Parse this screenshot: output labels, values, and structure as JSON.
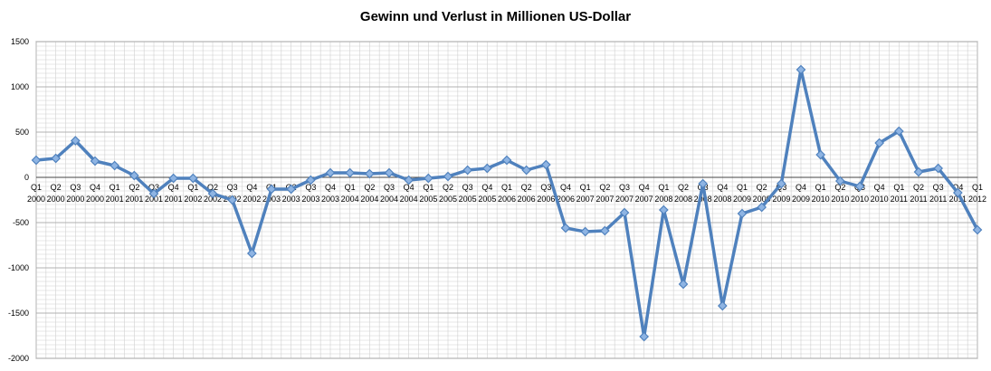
{
  "chart_data": {
    "type": "line",
    "title": "Gewinn und Verlust in Millionen US-Dollar",
    "xlabel": "",
    "ylabel": "",
    "ylim": [
      -2000,
      1500
    ],
    "yticks": [
      1500,
      1000,
      500,
      0,
      -500,
      -1000,
      -1500,
      -2000
    ],
    "grid": true,
    "legend": "none",
    "line_color": "#4F81BD",
    "categories": [
      [
        "Q1",
        "2000"
      ],
      [
        "Q2",
        "2000"
      ],
      [
        "Q3",
        "2000"
      ],
      [
        "Q4",
        "2000"
      ],
      [
        "Q1",
        "2001"
      ],
      [
        "Q2",
        "2001"
      ],
      [
        "Q3",
        "2001"
      ],
      [
        "Q4",
        "2001"
      ],
      [
        "Q1",
        "2002"
      ],
      [
        "Q2",
        "2002"
      ],
      [
        "Q3",
        "2002"
      ],
      [
        "Q4",
        "2002"
      ],
      [
        "Q1",
        "2003"
      ],
      [
        "Q2",
        "2003"
      ],
      [
        "Q3",
        "2003"
      ],
      [
        "Q4",
        "2003"
      ],
      [
        "Q1",
        "2004"
      ],
      [
        "Q2",
        "2004"
      ],
      [
        "Q3",
        "2004"
      ],
      [
        "Q4",
        "2004"
      ],
      [
        "Q1",
        "2005"
      ],
      [
        "Q2",
        "2005"
      ],
      [
        "Q3",
        "2005"
      ],
      [
        "Q4",
        "2005"
      ],
      [
        "Q1",
        "2006"
      ],
      [
        "Q2",
        "2006"
      ],
      [
        "Q3",
        "2006"
      ],
      [
        "Q4",
        "2006"
      ],
      [
        "Q1",
        "2007"
      ],
      [
        "Q2",
        "2007"
      ],
      [
        "Q3",
        "2007"
      ],
      [
        "Q4",
        "2007"
      ],
      [
        "Q1",
        "2008"
      ],
      [
        "Q2",
        "2008"
      ],
      [
        "Q3",
        "2008"
      ],
      [
        "Q4",
        "2008"
      ],
      [
        "Q1",
        "2009"
      ],
      [
        "Q2",
        "2009"
      ],
      [
        "Q3",
        "2009"
      ],
      [
        "Q4",
        "2009"
      ],
      [
        "Q1",
        "2010"
      ],
      [
        "Q2",
        "2010"
      ],
      [
        "Q3",
        "2010"
      ],
      [
        "Q4",
        "2010"
      ],
      [
        "Q1",
        "2011"
      ],
      [
        "Q2",
        "2011"
      ],
      [
        "Q3",
        "2011"
      ],
      [
        "Q4",
        "2011"
      ],
      [
        "Q1",
        "2012"
      ]
    ],
    "values": [
      190,
      210,
      405,
      180,
      130,
      20,
      -180,
      -10,
      -10,
      -180,
      -250,
      -840,
      -130,
      -130,
      -30,
      50,
      50,
      40,
      50,
      -30,
      -10,
      10,
      80,
      100,
      190,
      80,
      140,
      -560,
      -600,
      -590,
      -390,
      -1760,
      -360,
      -1180,
      -70,
      -1420,
      -400,
      -330,
      -70,
      1190,
      250,
      -40,
      -100,
      380,
      510,
      60,
      100,
      -170,
      -580
    ]
  }
}
